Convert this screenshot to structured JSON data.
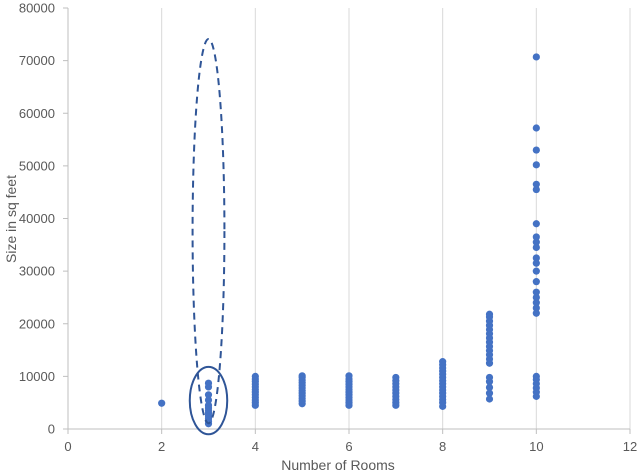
{
  "chart_data": {
    "type": "scatter",
    "title": "",
    "xlabel": "Number of Rooms",
    "ylabel": "Size in sq feet",
    "xlim": [
      0,
      12
    ],
    "ylim": [
      0,
      80000
    ],
    "x_ticks": [
      0,
      2,
      4,
      6,
      8,
      10,
      12
    ],
    "y_ticks": [
      0,
      10000,
      20000,
      30000,
      40000,
      50000,
      60000,
      70000,
      80000
    ],
    "grid": "vertical",
    "legend": "none",
    "point_color": "#4472C4",
    "annotation_color": "#2F5597",
    "series": [
      {
        "points": [
          [
            2,
            4900
          ],
          [
            3,
            1000
          ],
          [
            3,
            1500
          ],
          [
            3,
            2000
          ],
          [
            3,
            2500
          ],
          [
            3,
            3000
          ],
          [
            3,
            3500
          ],
          [
            3,
            4000
          ],
          [
            3,
            4500
          ],
          [
            3,
            5500
          ],
          [
            3,
            6500
          ],
          [
            3,
            8000
          ],
          [
            3,
            8700
          ],
          [
            4,
            4500
          ],
          [
            4,
            5000
          ],
          [
            4,
            5500
          ],
          [
            4,
            6000
          ],
          [
            4,
            6500
          ],
          [
            4,
            7000
          ],
          [
            4,
            7500
          ],
          [
            4,
            8000
          ],
          [
            4,
            8500
          ],
          [
            4,
            9000
          ],
          [
            4,
            9500
          ],
          [
            4,
            10000
          ],
          [
            5,
            4800
          ],
          [
            5,
            5300
          ],
          [
            5,
            5800
          ],
          [
            5,
            6300
          ],
          [
            5,
            6800
          ],
          [
            5,
            7300
          ],
          [
            5,
            7800
          ],
          [
            5,
            8300
          ],
          [
            5,
            8800
          ],
          [
            5,
            9300
          ],
          [
            5,
            9800
          ],
          [
            5,
            10100
          ],
          [
            6,
            4500
          ],
          [
            6,
            5000
          ],
          [
            6,
            5500
          ],
          [
            6,
            6000
          ],
          [
            6,
            6500
          ],
          [
            6,
            7000
          ],
          [
            6,
            7500
          ],
          [
            6,
            8000
          ],
          [
            6,
            8500
          ],
          [
            6,
            9000
          ],
          [
            6,
            9500
          ],
          [
            6,
            10100
          ],
          [
            7,
            4500
          ],
          [
            7,
            5000
          ],
          [
            7,
            5600
          ],
          [
            7,
            6200
          ],
          [
            7,
            6800
          ],
          [
            7,
            7400
          ],
          [
            7,
            8000
          ],
          [
            7,
            8600
          ],
          [
            7,
            9200
          ],
          [
            7,
            9800
          ],
          [
            8,
            4300
          ],
          [
            8,
            5000
          ],
          [
            8,
            5600
          ],
          [
            8,
            6200
          ],
          [
            8,
            6800
          ],
          [
            8,
            7400
          ],
          [
            8,
            8000
          ],
          [
            8,
            8600
          ],
          [
            8,
            9200
          ],
          [
            8,
            9800
          ],
          [
            8,
            10400
          ],
          [
            8,
            11000
          ],
          [
            8,
            11600
          ],
          [
            8,
            12200
          ],
          [
            8,
            12800
          ],
          [
            9,
            5700
          ],
          [
            9,
            6800
          ],
          [
            9,
            7900
          ],
          [
            9,
            9000
          ],
          [
            9,
            9800
          ],
          [
            9,
            12500
          ],
          [
            9,
            13300
          ],
          [
            9,
            14100
          ],
          [
            9,
            14900
          ],
          [
            9,
            15700
          ],
          [
            9,
            16500
          ],
          [
            9,
            17300
          ],
          [
            9,
            18100
          ],
          [
            9,
            18900
          ],
          [
            9,
            19700
          ],
          [
            9,
            20500
          ],
          [
            9,
            21300
          ],
          [
            9,
            21800
          ],
          [
            10,
            6200
          ],
          [
            10,
            7000
          ],
          [
            10,
            7800
          ],
          [
            10,
            8600
          ],
          [
            10,
            9400
          ],
          [
            10,
            10000
          ],
          [
            10,
            22000
          ],
          [
            10,
            23000
          ],
          [
            10,
            24000
          ],
          [
            10,
            25000
          ],
          [
            10,
            26000
          ],
          [
            10,
            28000
          ],
          [
            10,
            30000
          ],
          [
            10,
            31500
          ],
          [
            10,
            32500
          ],
          [
            10,
            34500
          ],
          [
            10,
            35500
          ],
          [
            10,
            36500
          ],
          [
            10,
            39000
          ],
          [
            10,
            45500
          ],
          [
            10,
            46500
          ],
          [
            10,
            50200
          ],
          [
            10,
            53000
          ],
          [
            10,
            57200
          ],
          [
            10,
            70700
          ]
        ]
      }
    ],
    "annotations": [
      {
        "shape": "ellipse",
        "style": "dashed",
        "cx": 3,
        "cy": 37600,
        "rx": 0.34,
        "ry": 36500
      },
      {
        "shape": "ellipse",
        "style": "solid",
        "cx": 3,
        "cy": 5400,
        "rx": 0.4,
        "ry": 6400
      }
    ]
  }
}
